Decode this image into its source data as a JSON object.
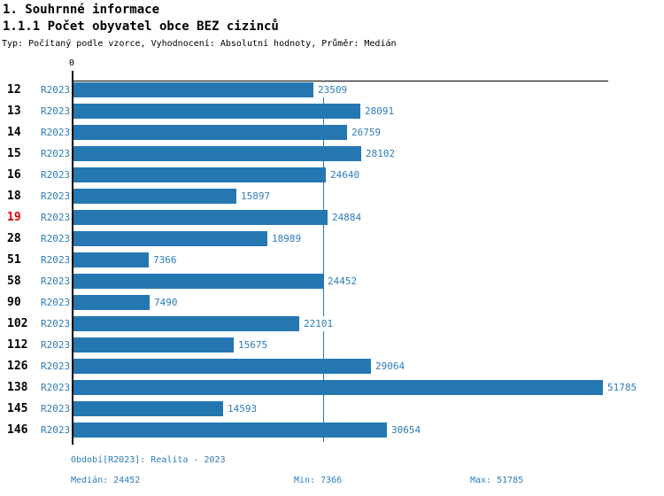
{
  "header": {
    "title": "1. Souhrnné informace",
    "subtitle": "1.1.1 Počet obyvatel obce BEZ cizinců",
    "meta": "Typ: Počítaný podle vzorce, Vyhodnocení: Absolutní hodnoty, Průměr: Medián"
  },
  "chart_data": {
    "type": "bar",
    "orientation": "horizontal",
    "title": "1.1.1 Počet obyvatel obce BEZ cizinců",
    "series_label": "R2023",
    "categories": [
      "12",
      "13",
      "14",
      "15",
      "16",
      "18",
      "19",
      "28",
      "51",
      "58",
      "90",
      "102",
      "112",
      "126",
      "138",
      "145",
      "146"
    ],
    "values": [
      23509,
      28091,
      26759,
      28102,
      24640,
      15897,
      24884,
      18989,
      7366,
      24452,
      7490,
      22101,
      15675,
      29064,
      51785,
      14593,
      30654
    ],
    "highlighted_category": "19",
    "x_zero_label": "0",
    "xlim": [
      0,
      51785
    ],
    "median_value": 24452,
    "min_value": 7366,
    "max_value": 51785,
    "grid": false,
    "value_labels": true,
    "colors": {
      "bar": "#2577b2",
      "median_line": "#2577b2",
      "value_label": "#2e7cb8",
      "category_label": "#000000",
      "highlighted_category_label": "#dd0000",
      "axis": "#000000",
      "footer_text": "#2e7cb8",
      "background": "#ffffff"
    }
  },
  "footer": {
    "period": "Období[R2023]: Realita - 2023",
    "median": "Medián: 24452",
    "min": "Min: 7366",
    "max": "Max: 51785"
  }
}
